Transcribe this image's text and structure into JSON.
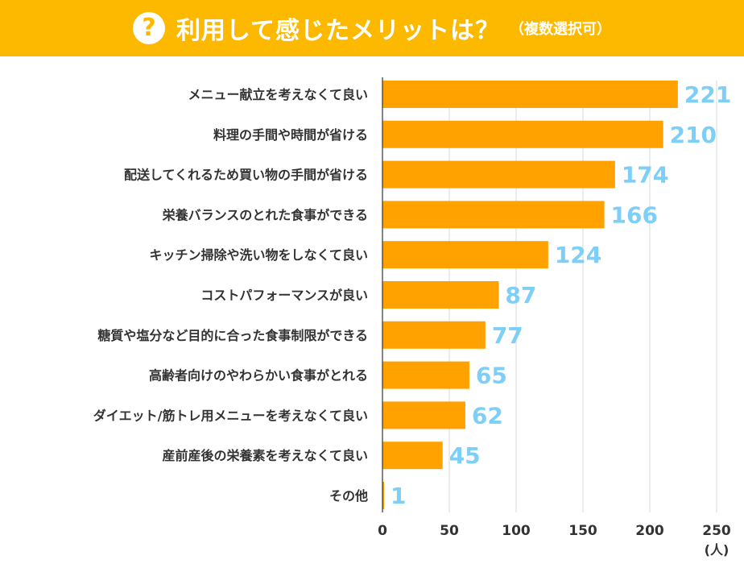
{
  "header": {
    "icon": "?",
    "title": "利用して感じたメリットは？",
    "subtitle": "（複数選択可）"
  },
  "colors": {
    "header_bg": "#FDB900",
    "bar": "#FFA200",
    "value_label": "#7ECFF7",
    "category_label": "#333333",
    "grid": "#D9D9D9",
    "axis": "#333333"
  },
  "chart_data": {
    "type": "bar",
    "orientation": "horizontal",
    "categories": [
      "メニュー献立を考えなくて良い",
      "料理の手間や時間が省ける",
      "配送してくれるため買い物の手間が省ける",
      "栄養バランスのとれた食事ができる",
      "キッチン掃除や洗い物をしなくて良い",
      "コストパフォーマンスが良い",
      "糖質や塩分など目的に合った食事制限ができる",
      "高齢者向けのやわらかい食事がとれる",
      "ダイエット/筋トレ用メニューを考えなくて良い",
      "産前産後の栄養素を考えなくて良い",
      "その他"
    ],
    "values": [
      221,
      210,
      174,
      166,
      124,
      87,
      77,
      65,
      62,
      45,
      1
    ],
    "xlim": [
      0,
      250
    ],
    "xticks": [
      "0",
      "50",
      "100",
      "150",
      "200",
      "250"
    ],
    "unit_label": "(人)",
    "grid": true
  }
}
